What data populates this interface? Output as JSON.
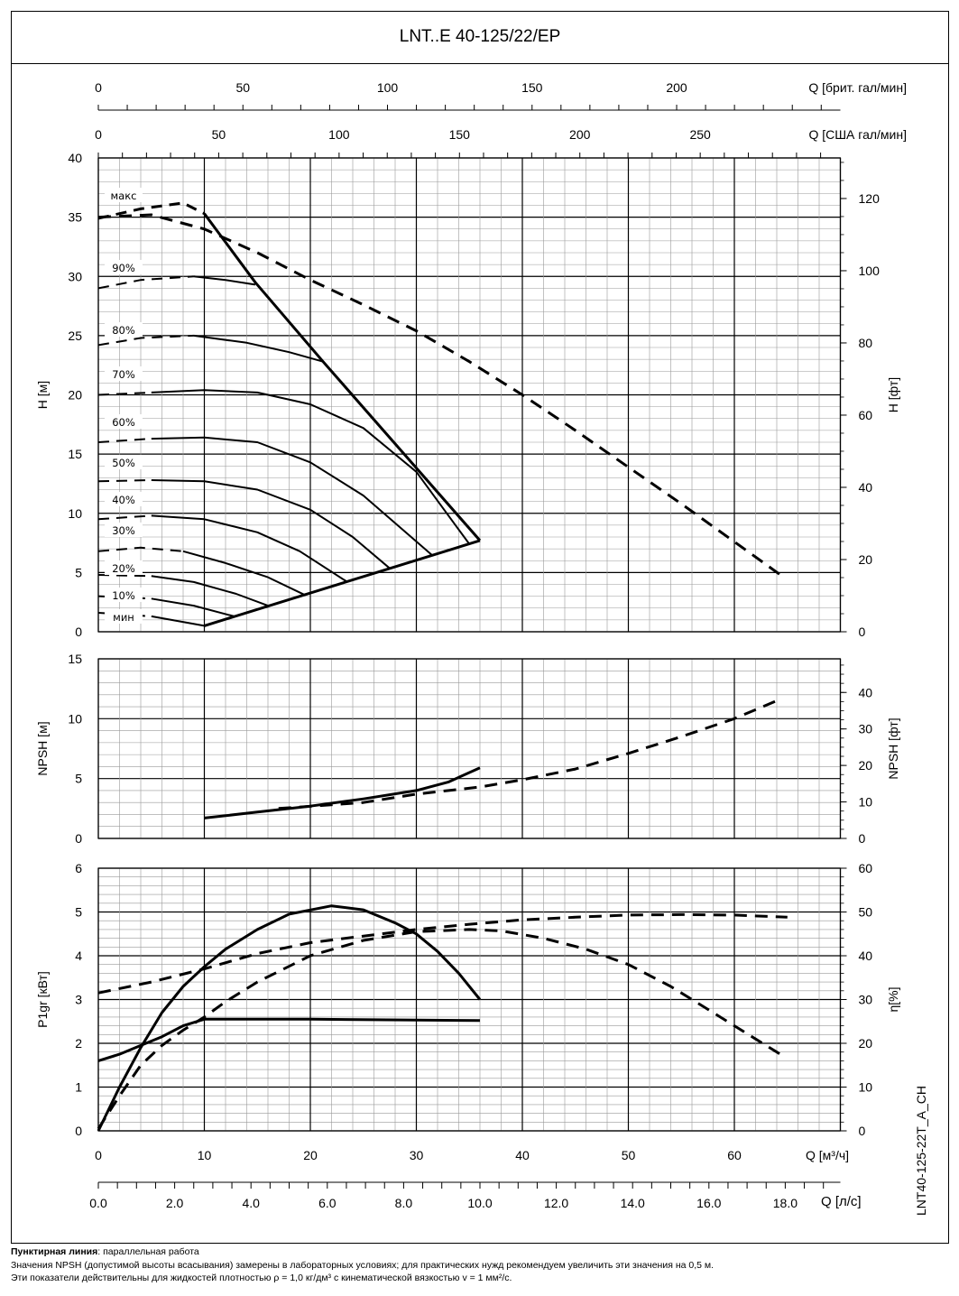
{
  "title": "LNT..E 40-125/22/EP",
  "side_code": "LNT40-125-22T_A_CH",
  "footer": {
    "line1_bold": "Пунктирная линия",
    "line1_rest": ": параллельная работа",
    "line2": "Значения NPSH (допустимой высоты всасывания) замерены в лабораторных условиях; для практических нужд рекомендуем увеличить эти значения на 0,5 м.",
    "line3": "Эти показатели действительны для жидкостей плотностью ρ = 1,0 кг/дм³ с кинематической вязкостью v = 1 мм²/с."
  },
  "chart_data": [
    {
      "id": "head",
      "type": "line",
      "ylabel": "H [м]",
      "ylabel_right": "H [фт]",
      "xlabel": "Q [м³/ч]",
      "xlim": [
        0,
        70
      ],
      "ylim": [
        0,
        40
      ],
      "y_ticks": [
        0,
        5,
        10,
        15,
        20,
        25,
        30,
        35,
        40
      ],
      "y_right_ticks": [
        0,
        20,
        40,
        60,
        80,
        100,
        120
      ],
      "secondary_axes": [
        {
          "label": "Q [брит. гал/мин]",
          "ticks": [
            0,
            50,
            100,
            150,
            200
          ]
        },
        {
          "label": "Q [США гал/мин]",
          "ticks": [
            0,
            50,
            100,
            150,
            200,
            250
          ]
        }
      ],
      "grid": true,
      "series": [
        {
          "name": "макс",
          "dashed_until": 10,
          "points": [
            [
              0,
              34.9
            ],
            [
              4,
              35.7
            ],
            [
              8,
              36.2
            ],
            [
              10,
              35.3
            ],
            [
              14.8,
              29.5
            ],
            [
              21.2,
              22.8
            ],
            [
              36,
              7.7
            ]
          ]
        },
        {
          "name": "параллельная работа",
          "style": "dashed",
          "points": [
            [
              0,
              35
            ],
            [
              5,
              35.2
            ],
            [
              10,
              34
            ],
            [
              15,
              32
            ],
            [
              20,
              29.7
            ],
            [
              25,
              27.6
            ],
            [
              30,
              25.4
            ],
            [
              35,
              22.8
            ],
            [
              40,
              20
            ],
            [
              45,
              17
            ],
            [
              50,
              13.9
            ],
            [
              55,
              10.8
            ],
            [
              60,
              7.6
            ],
            [
              64.5,
              4.7
            ]
          ]
        },
        {
          "name": "90%",
          "dashed_until": 5,
          "points": [
            [
              0,
              29
            ],
            [
              4,
              29.7
            ],
            [
              9,
              30.0
            ],
            [
              12,
              29.7
            ],
            [
              14.8,
              29.3
            ]
          ]
        },
        {
          "name": "80%",
          "dashed_until": 5,
          "points": [
            [
              0,
              24.2
            ],
            [
              4,
              24.8
            ],
            [
              9,
              25
            ],
            [
              14,
              24.4
            ],
            [
              18,
              23.6
            ],
            [
              21.2,
              22.8
            ]
          ]
        },
        {
          "name": "70%",
          "dashed_until": 5,
          "points": [
            [
              0,
              20
            ],
            [
              5,
              20.2
            ],
            [
              10,
              20.4
            ],
            [
              15,
              20.2
            ],
            [
              20,
              19.2
            ],
            [
              25,
              17.2
            ],
            [
              30,
              13.5
            ],
            [
              35,
              7.4
            ]
          ]
        },
        {
          "name": "60%",
          "dashed_until": 5,
          "points": [
            [
              0,
              16
            ],
            [
              5,
              16.3
            ],
            [
              10,
              16.4
            ],
            [
              15,
              16
            ],
            [
              20,
              14.3
            ],
            [
              25,
              11.5
            ],
            [
              31.5,
              6.45
            ]
          ]
        },
        {
          "name": "50%",
          "dashed_until": 5,
          "points": [
            [
              0,
              12.7
            ],
            [
              5,
              12.8
            ],
            [
              10,
              12.7
            ],
            [
              15,
              12
            ],
            [
              20,
              10.3
            ],
            [
              24,
              8
            ],
            [
              27.5,
              5.35
            ]
          ]
        },
        {
          "name": "40%",
          "dashed_until": 5,
          "points": [
            [
              0,
              9.5
            ],
            [
              5,
              9.8
            ],
            [
              10,
              9.5
            ],
            [
              15,
              8.4
            ],
            [
              19,
              6.8
            ],
            [
              23.5,
              4.2
            ]
          ]
        },
        {
          "name": "30%",
          "dashed_until": 5,
          "points": [
            [
              0,
              6.8
            ],
            [
              4,
              7.1
            ],
            [
              8,
              6.8
            ],
            [
              12,
              5.8
            ],
            [
              16,
              4.6
            ],
            [
              19.5,
              3.1
            ]
          ]
        },
        {
          "name": "20%",
          "dashed_until": 3,
          "points": [
            [
              0,
              4.8
            ],
            [
              5,
              4.7
            ],
            [
              9,
              4.2
            ],
            [
              13,
              3.2
            ],
            [
              16,
              2.2
            ]
          ]
        },
        {
          "name": "10%",
          "dashed_until": 3,
          "points": [
            [
              0,
              3.0
            ],
            [
              5,
              2.8
            ],
            [
              9,
              2.2
            ],
            [
              12.8,
              1.3
            ]
          ]
        },
        {
          "name": "мин",
          "dashed_until": 2,
          "points": [
            [
              0,
              1.6
            ],
            [
              5,
              1.3
            ],
            [
              10,
              0.5
            ]
          ]
        },
        {
          "name": "граница",
          "points": [
            [
              10,
              0.5
            ],
            [
              36,
              7.7
            ]
          ]
        }
      ],
      "curve_labels": [
        "макс",
        "90%",
        "80%",
        "70%",
        "60%",
        "50%",
        "40%",
        "30%",
        "20%",
        "10%",
        "мин"
      ]
    },
    {
      "id": "npsh",
      "type": "line",
      "ylabel": "NPSH [м]",
      "ylabel_right": "NPSH [фт]",
      "xlim": [
        0,
        70
      ],
      "ylim": [
        0,
        15
      ],
      "y_ticks": [
        0,
        5,
        10,
        15
      ],
      "y_right_ticks": [
        0,
        10,
        20,
        30,
        40
      ],
      "grid": true,
      "series": [
        {
          "name": "NPSH",
          "points": [
            [
              10,
              1.7
            ],
            [
              15,
              2.2
            ],
            [
              20,
              2.7
            ],
            [
              25,
              3.3
            ],
            [
              30,
              4.0
            ],
            [
              33,
              4.7
            ],
            [
              36,
              5.9
            ]
          ]
        },
        {
          "name": "NPSH параллельная работа",
          "style": "dashed",
          "points": [
            [
              17,
              2.5
            ],
            [
              25,
              3.0
            ],
            [
              30,
              3.7
            ],
            [
              36,
              4.3
            ],
            [
              40,
              4.9
            ],
            [
              45,
              5.8
            ],
            [
              50,
              7.1
            ],
            [
              55,
              8.5
            ],
            [
              60,
              10.0
            ],
            [
              64,
              11.5
            ]
          ]
        }
      ]
    },
    {
      "id": "power",
      "type": "line",
      "ylabel": "P1gr [кВт]",
      "ylabel_right": "η[%]",
      "xlabel": "Q [м³/ч]",
      "xlabel2": "Q [л/с]",
      "xlim": [
        0,
        70
      ],
      "ylim": [
        0,
        6
      ],
      "y_right_lim": [
        0,
        60
      ],
      "y_ticks": [
        0,
        1,
        2,
        3,
        4,
        5,
        6
      ],
      "y_right_ticks": [
        0,
        10,
        20,
        30,
        40,
        50,
        60
      ],
      "x_ticks": [
        0,
        10,
        20,
        30,
        40,
        50,
        60
      ],
      "x2_ticks": [
        "0.0",
        "2.0",
        "4.0",
        "6.0",
        "8.0",
        "10.0",
        "12.0",
        "14.0",
        "16.0",
        "18.0"
      ],
      "grid": true,
      "series": [
        {
          "name": "η",
          "axis": "right",
          "points": [
            [
              0,
              0
            ],
            [
              2,
              10
            ],
            [
              4,
              19
            ],
            [
              6,
              27
            ],
            [
              8,
              33
            ],
            [
              10,
              37.5
            ],
            [
              12,
              41.5
            ],
            [
              15,
              46
            ],
            [
              18,
              49.5
            ],
            [
              22,
              51.4
            ],
            [
              25,
              50.5
            ],
            [
              28,
              47.5
            ],
            [
              30,
              45
            ],
            [
              32,
              41
            ],
            [
              34,
              36
            ],
            [
              36,
              30
            ]
          ]
        },
        {
          "name": "P1",
          "points": [
            [
              0,
              1.6
            ],
            [
              2,
              1.75
            ],
            [
              4,
              1.95
            ],
            [
              6,
              2.15
            ],
            [
              8,
              2.4
            ],
            [
              10,
              2.55
            ],
            [
              20,
              2.55
            ],
            [
              36,
              2.52
            ]
          ]
        },
        {
          "name": "η параллельная работа",
          "axis": "right",
          "style": "dashed",
          "points": [
            [
              0,
              0.5
            ],
            [
              2,
              8
            ],
            [
              4,
              15
            ],
            [
              6,
              19.5
            ],
            [
              8,
              23
            ],
            [
              10,
              26
            ],
            [
              12,
              29.5
            ],
            [
              15,
              34
            ],
            [
              20,
              40
            ],
            [
              25,
              43.5
            ],
            [
              30,
              45.5
            ],
            [
              35,
              46
            ],
            [
              38,
              45.7
            ],
            [
              42,
              44
            ],
            [
              46,
              41.5
            ],
            [
              50,
              38
            ],
            [
              54,
              33
            ],
            [
              58,
              27
            ],
            [
              62,
              21
            ],
            [
              64.8,
              16.8
            ]
          ]
        },
        {
          "name": "P1 параллельная работа",
          "style": "dashed",
          "points": [
            [
              0,
              3.15
            ],
            [
              5,
              3.4
            ],
            [
              10,
              3.7
            ],
            [
              15,
              4.05
            ],
            [
              20,
              4.3
            ],
            [
              25,
              4.45
            ],
            [
              30,
              4.6
            ],
            [
              35,
              4.72
            ],
            [
              40,
              4.82
            ],
            [
              45,
              4.88
            ],
            [
              50,
              4.93
            ],
            [
              55,
              4.94
            ],
            [
              60,
              4.93
            ],
            [
              65,
              4.88
            ]
          ]
        }
      ]
    }
  ]
}
